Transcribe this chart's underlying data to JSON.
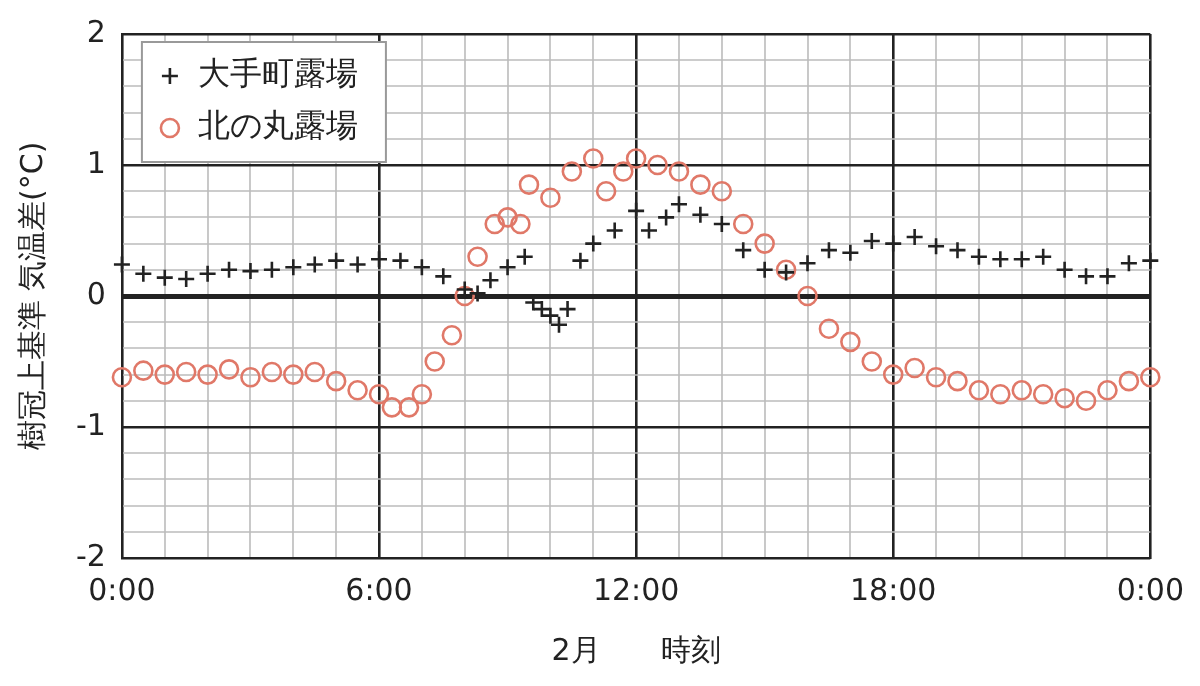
{
  "chart_data": {
    "type": "scatter",
    "xlabel": "2月　　時刻",
    "ylabel": "樹冠上基準 気温差(°C)",
    "xlim": [
      0,
      24
    ],
    "ylim": [
      -2,
      2
    ],
    "xticks": [
      {
        "value": 0,
        "label": "0:00"
      },
      {
        "value": 1,
        "label": null
      },
      {
        "value": 2,
        "label": null
      },
      {
        "value": 3,
        "label": null
      },
      {
        "value": 4,
        "label": null
      },
      {
        "value": 5,
        "label": null
      },
      {
        "value": 6,
        "label": "6:00"
      },
      {
        "value": 7,
        "label": null
      },
      {
        "value": 8,
        "label": null
      },
      {
        "value": 9,
        "label": null
      },
      {
        "value": 10,
        "label": null
      },
      {
        "value": 11,
        "label": null
      },
      {
        "value": 12,
        "label": "12:00"
      },
      {
        "value": 13,
        "label": null
      },
      {
        "value": 14,
        "label": null
      },
      {
        "value": 15,
        "label": null
      },
      {
        "value": 16,
        "label": null
      },
      {
        "value": 17,
        "label": null
      },
      {
        "value": 18,
        "label": "18:00"
      },
      {
        "value": 19,
        "label": null
      },
      {
        "value": 20,
        "label": null
      },
      {
        "value": 21,
        "label": null
      },
      {
        "value": 22,
        "label": null
      },
      {
        "value": 23,
        "label": null
      },
      {
        "value": 24,
        "label": "0:00"
      }
    ],
    "yticks": [
      -2,
      {
        "value": -1.8,
        "label": null
      },
      {
        "value": -1.6,
        "label": null
      },
      {
        "value": -1.4,
        "label": null
      },
      {
        "value": -1.2,
        "label": null
      },
      -1,
      {
        "value": -0.8,
        "label": null
      },
      {
        "value": -0.6,
        "label": null
      },
      {
        "value": -0.4,
        "label": null
      },
      {
        "value": -0.2,
        "label": null
      },
      0,
      {
        "value": 0.2,
        "label": null
      },
      {
        "value": 0.4,
        "label": null
      },
      {
        "value": 0.6,
        "label": null
      },
      {
        "value": 0.8,
        "label": null
      },
      1,
      {
        "value": 1.2,
        "label": null
      },
      {
        "value": 1.4,
        "label": null
      },
      {
        "value": 1.6,
        "label": null
      },
      {
        "value": 1.8,
        "label": null
      },
      2
    ],
    "grid": true,
    "legend": "top left",
    "series": [
      {
        "name": "大手町露場",
        "color": "#222222",
        "marker": "cross",
        "x": [
          0,
          0.5,
          1,
          1.5,
          2,
          2.5,
          3,
          3.5,
          4,
          4.5,
          5,
          5.5,
          6,
          6.5,
          7,
          7.5,
          8,
          8.3,
          8.6,
          9,
          9.4,
          9.6,
          9.8,
          10,
          10.2,
          10.4,
          10.7,
          11,
          11.5,
          12,
          12.3,
          12.7,
          13,
          13.5,
          14,
          14.5,
          15,
          15.5,
          16,
          16.5,
          17,
          17.5,
          18,
          18.5,
          19,
          19.5,
          20,
          20.5,
          21,
          21.5,
          22,
          22.5,
          23,
          23.5,
          24
        ],
        "values": [
          0.24,
          0.17,
          0.14,
          0.13,
          0.17,
          0.2,
          0.19,
          0.2,
          0.22,
          0.24,
          0.27,
          0.24,
          0.28,
          0.27,
          0.22,
          0.15,
          0.05,
          0.02,
          0.12,
          0.22,
          0.3,
          -0.05,
          -0.1,
          -0.15,
          -0.22,
          -0.1,
          0.27,
          0.4,
          0.5,
          0.65,
          0.5,
          0.6,
          0.7,
          0.62,
          0.55,
          0.35,
          0.2,
          0.18,
          0.25,
          0.35,
          0.33,
          0.42,
          0.4,
          0.45,
          0.38,
          0.35,
          0.3,
          0.28,
          0.28,
          0.3,
          0.2,
          0.15,
          0.15,
          0.25,
          0.27
        ]
      },
      {
        "name": "北の丸露場",
        "color": "#e07868",
        "marker": "circle",
        "x": [
          0,
          0.5,
          1,
          1.5,
          2,
          2.5,
          3,
          3.5,
          4,
          4.5,
          5,
          5.5,
          6,
          6.3,
          6.7,
          7,
          7.3,
          7.7,
          8,
          8.3,
          8.7,
          9,
          9.3,
          9.5,
          10,
          10.5,
          11,
          11.3,
          11.7,
          12,
          12.5,
          13,
          13.5,
          14,
          14.5,
          15,
          15.5,
          16,
          16.5,
          17,
          17.5,
          18,
          18.5,
          19,
          19.5,
          20,
          20.5,
          21,
          21.5,
          22,
          22.5,
          23,
          23.5,
          24
        ],
        "values": [
          -0.62,
          -0.57,
          -0.6,
          -0.58,
          -0.6,
          -0.56,
          -0.62,
          -0.58,
          -0.6,
          -0.58,
          -0.65,
          -0.72,
          -0.75,
          -0.85,
          -0.85,
          -0.75,
          -0.5,
          -0.3,
          0.0,
          0.3,
          0.55,
          0.6,
          0.55,
          0.85,
          0.75,
          0.95,
          1.05,
          0.8,
          0.95,
          1.05,
          1.0,
          0.95,
          0.85,
          0.8,
          0.55,
          0.4,
          0.2,
          0.0,
          -0.25,
          -0.35,
          -0.5,
          -0.6,
          -0.55,
          -0.62,
          -0.65,
          -0.72,
          -0.75,
          -0.72,
          -0.75,
          -0.78,
          -0.8,
          -0.72,
          -0.65,
          -0.62
        ]
      }
    ]
  }
}
